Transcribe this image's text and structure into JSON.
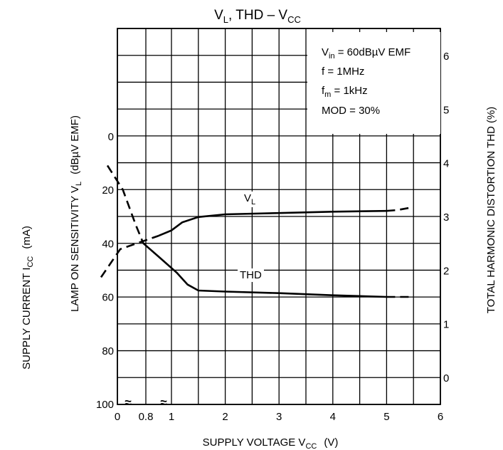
{
  "chart_data": {
    "type": "line",
    "title": {
      "main": "V",
      "sub1": "L",
      "mid": ", THD  –  V",
      "sub2": "CC"
    },
    "x_axis": {
      "label_main": "SUPPLY VOLTAGE   V",
      "label_sub": "CC",
      "label_unit": "(V)",
      "ticks": [
        {
          "label": "0",
          "value": 0
        },
        {
          "label": "0.8",
          "value": 0.8
        },
        {
          "label": "1",
          "value": 1
        },
        {
          "label": "2",
          "value": 2
        },
        {
          "label": "3",
          "value": 3
        },
        {
          "label": "4",
          "value": 4
        },
        {
          "label": "5",
          "value": 5
        },
        {
          "label": "6",
          "value": 6
        }
      ],
      "break_marks": [
        "≈",
        "≈"
      ]
    },
    "y_left_outer": {
      "label_main": "SUPPLY CURRENT   I",
      "label_sub": "CC",
      "label_unit": "(mA)"
    },
    "y_left_inner": {
      "label_main": "LAMP ON SENSITIVITY   V",
      "label_sub": "L",
      "label_unit": "(dBµV EMF)",
      "ticks": [
        "0",
        "20",
        "40",
        "60",
        "80",
        "100"
      ],
      "tick_values": [
        0,
        20,
        40,
        60,
        80,
        100
      ],
      "inverted": true
    },
    "y_right": {
      "label": "TOTAL HARMONIC DISTORTION   THD    (%)",
      "ticks": [
        "0",
        "1",
        "2",
        "3",
        "4",
        "5",
        "6"
      ],
      "tick_values": [
        0,
        1,
        2,
        3,
        4,
        5,
        6
      ],
      "range": [
        -0.4,
        6.4
      ]
    },
    "conditions": [
      {
        "main": "V",
        "sub": "in",
        "rest": " = 60dBµV  EMF"
      },
      {
        "main": "f = 1MHz",
        "sub": "",
        "rest": ""
      },
      {
        "main": "f",
        "sub": "m",
        "rest": " = 1kHz"
      },
      {
        "main": "MOD = 30%",
        "sub": "",
        "rest": ""
      }
    ],
    "series": [
      {
        "name": "V",
        "name_sub": "L",
        "axis": "y_left_inner",
        "solid_points": [
          [
            0.9,
            37
          ],
          [
            1.0,
            35
          ],
          [
            1.2,
            32
          ],
          [
            1.5,
            30
          ],
          [
            2,
            29
          ],
          [
            3,
            28.5
          ],
          [
            4,
            28
          ],
          [
            5,
            27.7
          ]
        ],
        "dashed_points": [
          [
            0.45,
            52.5
          ],
          [
            0.6,
            42
          ],
          [
            0.9,
            37
          ]
        ],
        "dashed_tail": [
          [
            5,
            27.7
          ],
          [
            5.2,
            27.4
          ],
          [
            5.5,
            26.3
          ]
        ]
      },
      {
        "name": "THD",
        "name_sub": "",
        "axis": "y_right",
        "solid_points": [
          [
            0.78,
            2.5
          ],
          [
            0.9,
            2.25
          ],
          [
            1.1,
            1.95
          ],
          [
            1.3,
            1.73
          ],
          [
            1.5,
            1.62
          ],
          [
            2,
            1.6
          ],
          [
            3,
            1.57
          ],
          [
            4,
            1.53
          ],
          [
            5,
            1.5
          ]
        ],
        "dashed_points": [
          [
            0.5,
            3.95
          ],
          [
            0.62,
            3.5
          ],
          [
            0.72,
            2.85
          ],
          [
            0.78,
            2.5
          ]
        ],
        "dashed_tail": [
          [
            5,
            1.5
          ],
          [
            5.5,
            1.5
          ]
        ]
      }
    ],
    "grid": true
  }
}
